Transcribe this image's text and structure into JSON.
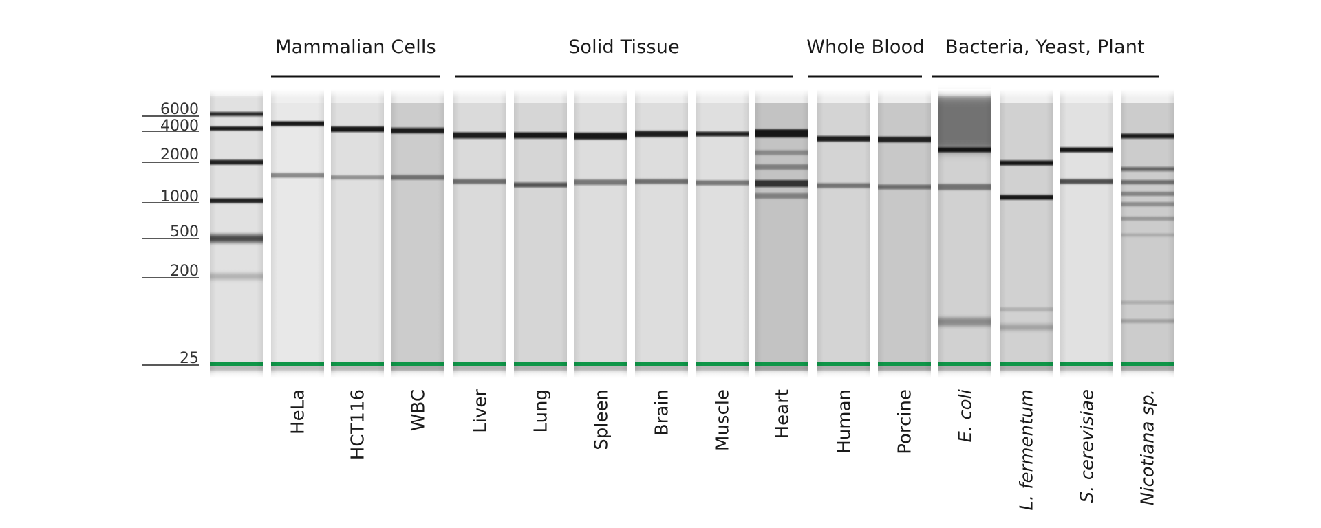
{
  "figure": {
    "groups": [
      {
        "label": "Mammalian Cells",
        "lanes": [
          1,
          3
        ]
      },
      {
        "label": "Solid Tissue",
        "lanes": [
          4,
          9
        ]
      },
      {
        "label": "Whole Blood",
        "lanes": [
          10,
          11
        ]
      },
      {
        "label": "Bacteria, Yeast, Plant",
        "lanes": [
          12,
          15
        ]
      }
    ],
    "ladder": {
      "sizes_nt": [
        "6000",
        "4000",
        "2000",
        "1000",
        "500",
        "200",
        "25"
      ]
    },
    "lanes": [
      {
        "label": "",
        "italic": false,
        "is_ladder": true
      },
      {
        "label": "HeLa",
        "italic": false
      },
      {
        "label": "HCT116",
        "italic": false
      },
      {
        "label": "WBC",
        "italic": false
      },
      {
        "label": "Liver",
        "italic": false
      },
      {
        "label": "Lung",
        "italic": false
      },
      {
        "label": "Spleen",
        "italic": false
      },
      {
        "label": "Brain",
        "italic": false
      },
      {
        "label": "Muscle",
        "italic": false
      },
      {
        "label": "Heart",
        "italic": false
      },
      {
        "label": "Human",
        "italic": false
      },
      {
        "label": "Porcine",
        "italic": false
      },
      {
        "label": "E. coli",
        "italic": true
      },
      {
        "label": "L. fermentum",
        "italic": true
      },
      {
        "label": "S. cerevisiae",
        "italic": true
      },
      {
        "label": "Nicotiana sp.",
        "italic": true
      }
    ],
    "colors": {
      "marker_band": "#0f9a4a",
      "dark_band": "#0d0d0d",
      "bracket_line": "#111111"
    }
  }
}
